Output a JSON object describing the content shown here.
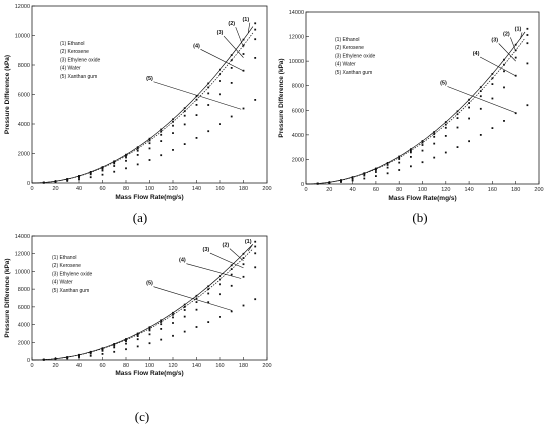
{
  "chart_data": [
    {
      "type": "scatter",
      "panel_label": "(a)",
      "xlabel": "Mass Flow Rate(mg/s)",
      "ylabel": "Pressure Difference (kPa)",
      "xlim": [
        0,
        200
      ],
      "ylim": [
        0,
        12000
      ],
      "xticks": [
        "0",
        "20",
        "40",
        "60",
        "80",
        "100",
        "120",
        "140",
        "160",
        "180",
        "200"
      ],
      "yticks": [
        "0",
        "2000",
        "4000",
        "6000",
        "8000",
        "10000",
        "12000"
      ],
      "legend": [
        "(1) Ethanol",
        "(2) Kerosene",
        "(3) Ethylene oxide",
        "(4) Water",
        "(5) Xanthan gum"
      ],
      "annotations": [
        {
          "label": "(1)",
          "tip": [
            184,
            10200
          ],
          "text_at": [
            182,
            11000
          ]
        },
        {
          "label": "(2)",
          "tip": [
            180,
            9200
          ],
          "text_at": [
            170,
            10700
          ]
        },
        {
          "label": "(3)",
          "tip": [
            180,
            8500
          ],
          "text_at": [
            160,
            10100
          ]
        },
        {
          "label": "(4)",
          "tip": [
            180,
            7600
          ],
          "text_at": [
            140,
            9200
          ]
        },
        {
          "label": "(5)",
          "tip": [
            178,
            5000
          ],
          "text_at": [
            100,
            7000
          ]
        }
      ],
      "series": [
        {
          "name": "(1) Ethanol",
          "x": [
            10,
            20,
            30,
            40,
            50,
            60,
            70,
            80,
            90,
            100,
            110,
            120,
            130,
            140,
            150,
            160,
            170,
            180,
            190
          ],
          "y": [
            30,
            120,
            270,
            480,
            750,
            1080,
            1470,
            1920,
            2430,
            3000,
            3630,
            4320,
            5070,
            5880,
            6750,
            7680,
            8670,
            9720,
            10830
          ]
        },
        {
          "name": "(2) Kerosene",
          "x": [
            10,
            20,
            30,
            40,
            50,
            60,
            70,
            80,
            90,
            100,
            110,
            120,
            130,
            140,
            150,
            160,
            170,
            180,
            190
          ],
          "y": [
            29,
            115,
            259,
            461,
            720,
            1037,
            1411,
            1843,
            2333,
            2880,
            3485,
            4147,
            4867,
            5645,
            6480,
            7373,
            8323,
            9331,
            10397
          ]
        },
        {
          "name": "(3) Ethylene oxide",
          "x": [
            10,
            20,
            30,
            40,
            50,
            60,
            70,
            80,
            90,
            100,
            110,
            120,
            130,
            140,
            150,
            160,
            170,
            180,
            190
          ],
          "y": [
            27,
            108,
            243,
            432,
            675,
            972,
            1323,
            1728,
            2187,
            2700,
            3267,
            3888,
            4563,
            5292,
            6075,
            6912,
            7803,
            8748,
            9747
          ]
        },
        {
          "name": "(4) Water",
          "x": [
            10,
            20,
            30,
            40,
            50,
            60,
            70,
            80,
            90,
            100,
            110,
            120,
            130,
            140,
            150,
            160,
            170,
            180,
            190
          ],
          "y": [
            23,
            94,
            211,
            376,
            587,
            845,
            1151,
            1503,
            1903,
            2349,
            2842,
            3382,
            3970,
            4604,
            5285,
            6014,
            6789,
            7611,
            8480
          ]
        },
        {
          "name": "(5) Xanthan gum",
          "x": [
            10,
            20,
            30,
            40,
            50,
            60,
            70,
            80,
            90,
            100,
            110,
            120,
            130,
            140,
            150,
            160,
            170,
            180,
            190
          ],
          "y": [
            16,
            62,
            140,
            250,
            390,
            562,
            764,
            998,
            1264,
            1560,
            1888,
            2246,
            2636,
            3058,
            3510,
            3994,
            4508,
            5054,
            5632
          ]
        }
      ]
    },
    {
      "type": "scatter",
      "panel_label": "(b)",
      "xlabel": "Mass Flow Rate(mg/s)",
      "ylabel": "Pressure Difference (kPa)",
      "xlim": [
        0,
        200
      ],
      "ylim": [
        0,
        14000
      ],
      "xticks": [
        "0",
        "20",
        "40",
        "60",
        "80",
        "100",
        "120",
        "140",
        "160",
        "180",
        "200"
      ],
      "yticks": [
        "0",
        "2000",
        "4000",
        "6000",
        "8000",
        "10000",
        "12000",
        "14000"
      ],
      "legend": [
        "(1) Ethanol",
        "(2) Kerosene",
        "(3) Ethylene oxide",
        "(4) Water",
        "(5) Xanthan gum"
      ],
      "annotations": [
        {
          "label": "(1)",
          "tip": [
            184,
            11800
          ],
          "text_at": [
            182,
            12500
          ]
        },
        {
          "label": "(2)",
          "tip": [
            180,
            10800
          ],
          "text_at": [
            172,
            12100
          ]
        },
        {
          "label": "(3)",
          "tip": [
            180,
            10000
          ],
          "text_at": [
            162,
            11600
          ]
        },
        {
          "label": "(4)",
          "tip": [
            180,
            8800
          ],
          "text_at": [
            146,
            10500
          ]
        },
        {
          "label": "(5)",
          "tip": [
            180,
            5800
          ],
          "text_at": [
            118,
            8100
          ]
        }
      ],
      "series": [
        {
          "name": "(1) Ethanol",
          "x": [
            10,
            20,
            30,
            40,
            50,
            60,
            70,
            80,
            90,
            100,
            110,
            120,
            130,
            140,
            150,
            160,
            170,
            180,
            190
          ],
          "y": [
            35,
            140,
            315,
            560,
            875,
            1260,
            1715,
            2240,
            2835,
            3500,
            4235,
            5040,
            5915,
            6860,
            7875,
            8960,
            10115,
            11340,
            12635
          ]
        },
        {
          "name": "(2) Kerosene",
          "x": [
            10,
            20,
            30,
            40,
            50,
            60,
            70,
            80,
            90,
            100,
            110,
            120,
            130,
            140,
            150,
            160,
            170,
            180,
            190
          ],
          "y": [
            34,
            134,
            302,
            538,
            840,
            1210,
            1646,
            2150,
            2722,
            3360,
            4066,
            4838,
            5678,
            6586,
            7560,
            8602,
            9710,
            10886,
            12130
          ]
        },
        {
          "name": "(3) Ethylene oxide",
          "x": [
            10,
            20,
            30,
            40,
            50,
            60,
            70,
            80,
            90,
            100,
            110,
            120,
            130,
            140,
            150,
            160,
            170,
            180,
            190
          ],
          "y": [
            32,
            127,
            286,
            508,
            794,
            1143,
            1556,
            2032,
            2572,
            3175,
            3842,
            4572,
            5366,
            6223,
            7144,
            8128,
            9176,
            10287,
            11462
          ]
        },
        {
          "name": "(4) Water",
          "x": [
            10,
            20,
            30,
            40,
            50,
            60,
            70,
            80,
            90,
            100,
            110,
            120,
            130,
            140,
            150,
            160,
            170,
            180,
            190
          ],
          "y": [
            27,
            109,
            245,
            435,
            680,
            979,
            1333,
            1741,
            2203,
            2720,
            3291,
            3917,
            4597,
            5331,
            6120,
            6963,
            7861,
            8813,
            9819
          ]
        },
        {
          "name": "(5) Xanthan gum",
          "x": [
            10,
            20,
            30,
            40,
            50,
            60,
            70,
            80,
            90,
            100,
            110,
            120,
            130,
            140,
            150,
            160,
            170,
            180,
            190
          ],
          "y": [
            18,
            71,
            160,
            284,
            444,
            640,
            871,
            1138,
            1440,
            1778,
            2151,
            2560,
            3004,
            3484,
            4000,
            4551,
            5138,
            5760,
            6418
          ]
        }
      ]
    },
    {
      "type": "scatter",
      "panel_label": "(c)",
      "xlabel": "Mass Flow Rate(mg/s)",
      "ylabel": "Pressure Difference (kPa)",
      "xlim": [
        0,
        200
      ],
      "ylim": [
        0,
        14000
      ],
      "xticks": [
        "0",
        "20",
        "40",
        "60",
        "80",
        "100",
        "120",
        "140",
        "160",
        "180",
        "200"
      ],
      "yticks": [
        "0",
        "2000",
        "4000",
        "6000",
        "8000",
        "10000",
        "12000",
        "14000"
      ],
      "legend": [
        "(1) Ethanol",
        "(2) Kerosene",
        "(3) Ethylene oxide",
        "(4) Water",
        "(5) Xanthan gum"
      ],
      "annotations": [
        {
          "label": "(1)",
          "tip": [
            184,
            12300
          ],
          "text_at": [
            184,
            13200
          ]
        },
        {
          "label": "(2)",
          "tip": [
            180,
            11200
          ],
          "text_at": [
            165,
            12800
          ]
        },
        {
          "label": "(3)",
          "tip": [
            180,
            10400
          ],
          "text_at": [
            148,
            12300
          ]
        },
        {
          "label": "(4)",
          "tip": [
            178,
            9200
          ],
          "text_at": [
            128,
            11100
          ]
        },
        {
          "label": "(5)",
          "tip": [
            170,
            5600
          ],
          "text_at": [
            100,
            8500
          ]
        }
      ],
      "series": [
        {
          "name": "(1) Ethanol",
          "x": [
            10,
            20,
            30,
            40,
            50,
            60,
            70,
            80,
            90,
            100,
            110,
            120,
            130,
            140,
            150,
            160,
            170,
            180,
            190
          ],
          "y": [
            37,
            148,
            333,
            592,
            925,
            1332,
            1813,
            2368,
            2997,
            3700,
            4477,
            5328,
            6253,
            7252,
            8325,
            9472,
            10693,
            11988,
            13357
          ]
        },
        {
          "name": "(2) Kerosene",
          "x": [
            10,
            20,
            30,
            40,
            50,
            60,
            70,
            80,
            90,
            100,
            110,
            120,
            130,
            140,
            150,
            160,
            170,
            180,
            190
          ],
          "y": [
            35,
            142,
            320,
            568,
            888,
            1278,
            1740,
            2272,
            2876,
            3550,
            4296,
            5112,
            6000,
            6958,
            7988,
            9088,
            10260,
            11502,
            12816
          ]
        },
        {
          "name": "(3) Ethylene oxide",
          "x": [
            10,
            20,
            30,
            40,
            50,
            60,
            70,
            80,
            90,
            100,
            110,
            120,
            130,
            140,
            150,
            160,
            170,
            180,
            190
          ],
          "y": [
            33,
            134,
            300,
            534,
            834,
            1201,
            1635,
            2136,
            2703,
            3337,
            4038,
            4805,
            5640,
            6541,
            7509,
            8543,
            9645,
            10813,
            12048
          ]
        },
        {
          "name": "(4) Water",
          "x": [
            10,
            20,
            30,
            40,
            50,
            60,
            70,
            80,
            90,
            100,
            110,
            120,
            130,
            140,
            150,
            160,
            170,
            180,
            190
          ],
          "y": [
            29,
            116,
            261,
            464,
            725,
            1044,
            1421,
            1856,
            2349,
            2900,
            3509,
            4176,
            4901,
            5684,
            6525,
            7424,
            8381,
            9396,
            10469
          ]
        },
        {
          "name": "(5) Xanthan gum",
          "x": [
            10,
            20,
            30,
            40,
            50,
            60,
            70,
            80,
            90,
            100,
            110,
            120,
            130,
            140,
            150,
            160,
            170,
            180,
            190
          ],
          "y": [
            19,
            76,
            171,
            304,
            475,
            684,
            931,
            1216,
            1539,
            1900,
            2299,
            2736,
            3211,
            3724,
            4275,
            4864,
            5491,
            6156,
            6859
          ]
        }
      ]
    }
  ]
}
